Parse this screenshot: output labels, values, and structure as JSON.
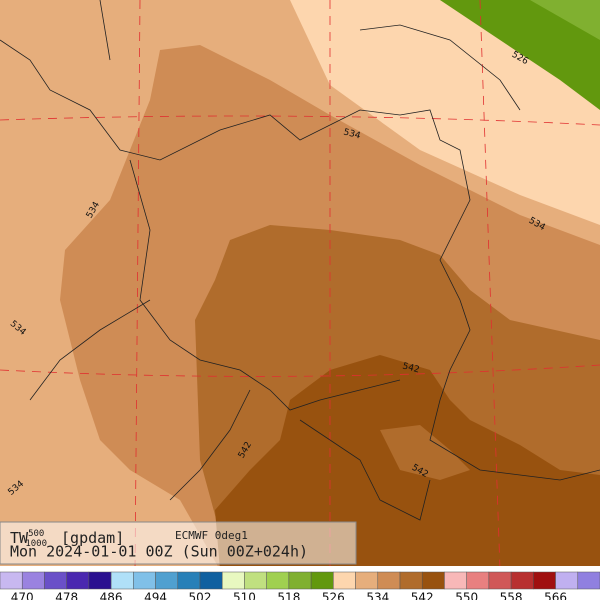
{
  "map": {
    "contour_labels": [
      "534",
      "534",
      "534",
      "534",
      "534",
      "526",
      "542",
      "542",
      "542"
    ],
    "info": {
      "var": "TW",
      "sup": "500",
      "sub": "1000",
      "unit": "[gpdam]",
      "model": "ECMWF 0deg1",
      "time": "Mon 2024-01-01 00Z (Sun 00Z+024h)"
    },
    "colorbar": {
      "labels": [
        "470",
        "478",
        "486",
        "494",
        "502",
        "510",
        "518",
        "526",
        "534",
        "542",
        "550",
        "558",
        "566"
      ],
      "colors": [
        "#c8b8f0",
        "#9a82e0",
        "#6a50c8",
        "#4a28b0",
        "#2a1090",
        "#b0e0f8",
        "#80c0e8",
        "#50a0d0",
        "#2880b8",
        "#1060a0",
        "#e8f8c0",
        "#c0e080",
        "#a0d050",
        "#80b030",
        "#62980e",
        "#fdd6ae",
        "#e6ae7c",
        "#cf8c55",
        "#b06c2c",
        "#98520f",
        "#f8b8b8",
        "#e88080",
        "#d05858",
        "#b83030",
        "#a01010",
        "#c0b0f0",
        "#9080e0"
      ]
    }
  }
}
